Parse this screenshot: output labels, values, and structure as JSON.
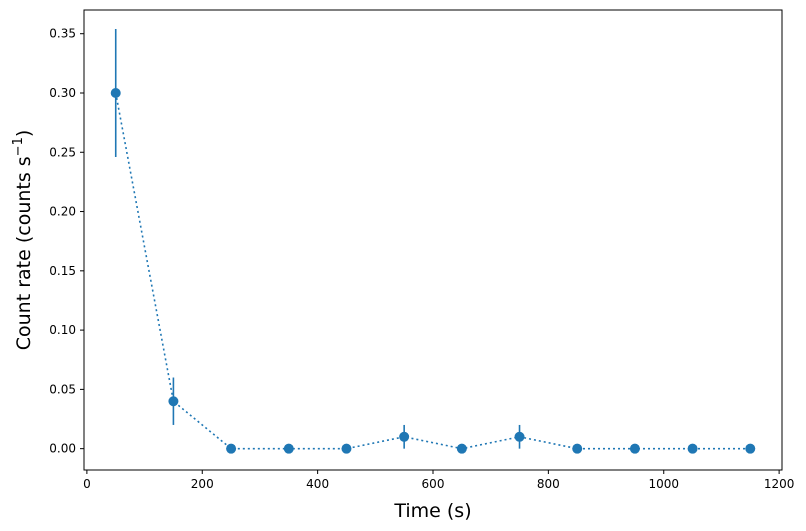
{
  "chart_data": {
    "type": "scatter",
    "title": "",
    "xlabel": "Time (s)",
    "ylabel_main": "Count rate (counts s",
    "ylabel_sup": "−1",
    "ylabel_close": ")",
    "xlim": [
      -5,
      1205
    ],
    "ylim": [
      -0.018,
      0.37
    ],
    "xticks": [
      0,
      200,
      400,
      600,
      800,
      1000,
      1200
    ],
    "xtick_labels": [
      "0",
      "200",
      "400",
      "600",
      "800",
      "1000",
      "1200"
    ],
    "yticks": [
      0.0,
      0.05,
      0.1,
      0.15,
      0.2,
      0.25,
      0.3,
      0.35
    ],
    "ytick_labels": [
      "0.00",
      "0.05",
      "0.10",
      "0.15",
      "0.20",
      "0.25",
      "0.30",
      "0.35"
    ],
    "grid": false,
    "legend": "none",
    "color": "#1f77b4",
    "line_style": "dotted",
    "points": [
      {
        "x": 50,
        "y": 0.3,
        "yerr": 0.054
      },
      {
        "x": 150,
        "y": 0.04,
        "yerr": 0.02
      },
      {
        "x": 250,
        "y": 0.0,
        "yerr": 0
      },
      {
        "x": 350,
        "y": 0.0,
        "yerr": 0
      },
      {
        "x": 450,
        "y": 0.0,
        "yerr": 0
      },
      {
        "x": 550,
        "y": 0.01,
        "yerr": 0.01
      },
      {
        "x": 650,
        "y": 0.0,
        "yerr": 0
      },
      {
        "x": 750,
        "y": 0.01,
        "yerr": 0.01
      },
      {
        "x": 850,
        "y": 0.0,
        "yerr": 0
      },
      {
        "x": 950,
        "y": 0.0,
        "yerr": 0
      },
      {
        "x": 1050,
        "y": 0.0,
        "yerr": 0
      },
      {
        "x": 1150,
        "y": 0.0,
        "yerr": 0
      }
    ]
  }
}
